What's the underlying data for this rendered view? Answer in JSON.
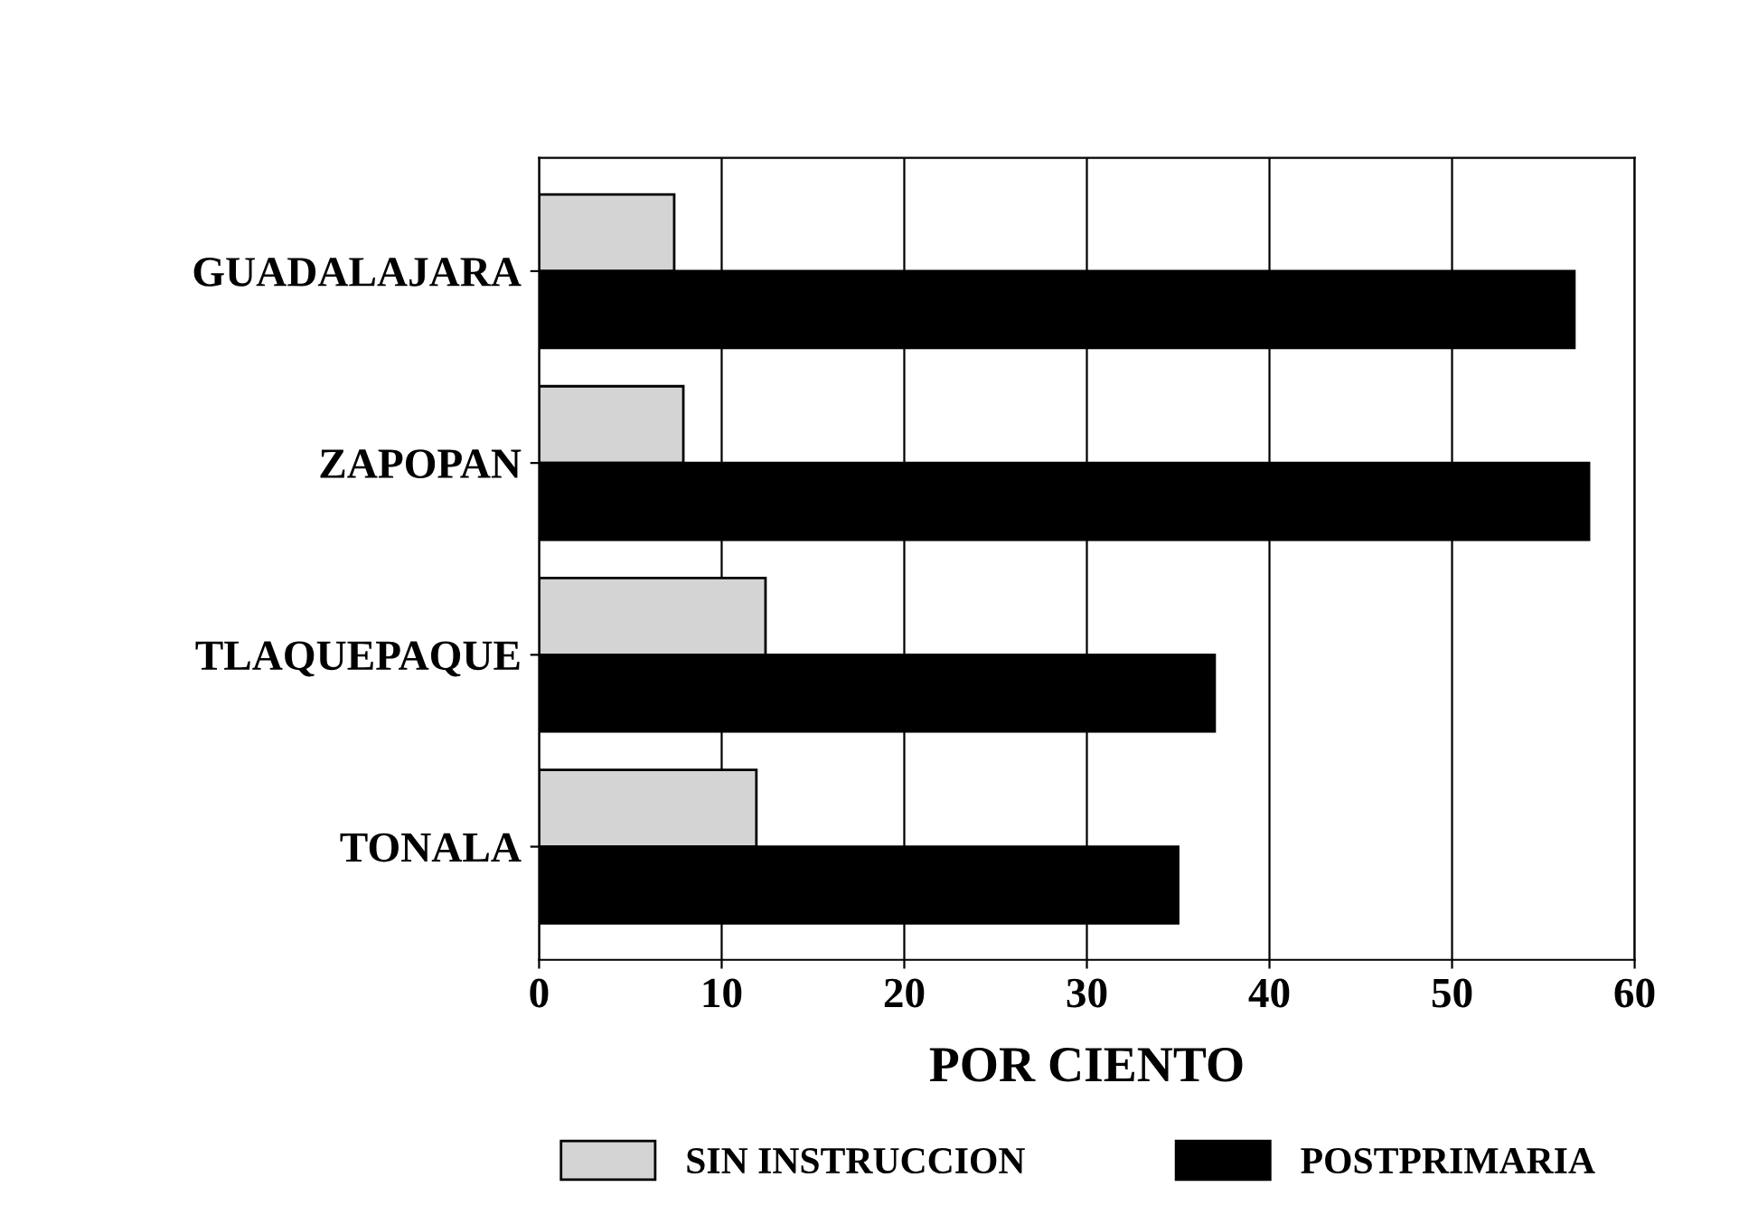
{
  "chart_data": {
    "type": "bar",
    "orientation": "horizontal",
    "categories": [
      "GUADALAJARA",
      "ZAPOPAN",
      "TLAQUEPAQUE",
      "TONALA"
    ],
    "series": [
      {
        "name": "SIN INSTRUCCION",
        "color": "#d4d4d4",
        "values": [
          7.4,
          7.9,
          12.4,
          11.9
        ]
      },
      {
        "name": "POSTPRIMARIA",
        "color": "#000000",
        "values": [
          56.7,
          57.5,
          37,
          35
        ]
      }
    ],
    "xlabel": "POR CIENTO",
    "xlim": [
      0,
      60
    ],
    "xticks": [
      0,
      10,
      20,
      30,
      40,
      50,
      60
    ],
    "grid": "x",
    "legend": "bottom"
  }
}
